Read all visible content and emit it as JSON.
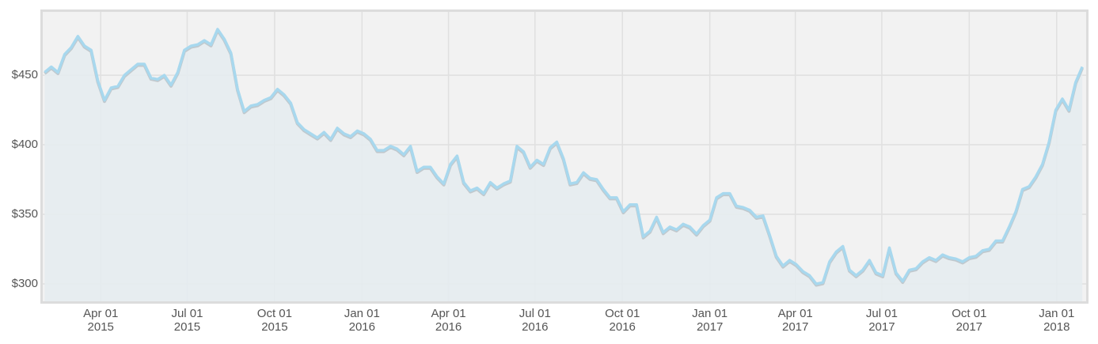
{
  "chart_data": {
    "type": "area",
    "x": [
      "2015-02-01",
      "2015-02-08",
      "2015-02-15",
      "2015-02-22",
      "2015-03-01",
      "2015-03-08",
      "2015-03-15",
      "2015-03-22",
      "2015-03-29",
      "2015-04-05",
      "2015-04-12",
      "2015-04-19",
      "2015-04-26",
      "2015-05-03",
      "2015-05-10",
      "2015-05-17",
      "2015-05-24",
      "2015-05-31",
      "2015-06-07",
      "2015-06-14",
      "2015-06-21",
      "2015-06-28",
      "2015-07-05",
      "2015-07-12",
      "2015-07-19",
      "2015-07-26",
      "2015-08-02",
      "2015-08-09",
      "2015-08-16",
      "2015-08-23",
      "2015-08-30",
      "2015-09-06",
      "2015-09-13",
      "2015-09-20",
      "2015-09-27",
      "2015-10-04",
      "2015-10-11",
      "2015-10-18",
      "2015-10-25",
      "2015-11-01",
      "2015-11-08",
      "2015-11-15",
      "2015-11-22",
      "2015-11-29",
      "2015-12-06",
      "2015-12-13",
      "2015-12-20",
      "2015-12-27",
      "2016-01-03",
      "2016-01-10",
      "2016-01-17",
      "2016-01-24",
      "2016-01-31",
      "2016-02-07",
      "2016-02-14",
      "2016-02-21",
      "2016-02-28",
      "2016-03-06",
      "2016-03-13",
      "2016-03-20",
      "2016-03-27",
      "2016-04-03",
      "2016-04-10",
      "2016-04-17",
      "2016-04-24",
      "2016-05-01",
      "2016-05-08",
      "2016-05-15",
      "2016-05-22",
      "2016-05-29",
      "2016-06-05",
      "2016-06-12",
      "2016-06-19",
      "2016-06-26",
      "2016-07-03",
      "2016-07-10",
      "2016-07-17",
      "2016-07-24",
      "2016-07-31",
      "2016-08-07",
      "2016-08-14",
      "2016-08-21",
      "2016-08-28",
      "2016-09-04",
      "2016-09-11",
      "2016-09-18",
      "2016-09-25",
      "2016-10-02",
      "2016-10-09",
      "2016-10-16",
      "2016-10-23",
      "2016-10-30",
      "2016-11-06",
      "2016-11-13",
      "2016-11-20",
      "2016-11-27",
      "2016-12-04",
      "2016-12-11",
      "2016-12-18",
      "2016-12-25",
      "2017-01-01",
      "2017-01-08",
      "2017-01-15",
      "2017-01-22",
      "2017-01-29",
      "2017-02-05",
      "2017-02-12",
      "2017-02-19",
      "2017-02-26",
      "2017-03-05",
      "2017-03-12",
      "2017-03-19",
      "2017-03-26",
      "2017-04-02",
      "2017-04-09",
      "2017-04-16",
      "2017-04-23",
      "2017-04-30",
      "2017-05-07",
      "2017-05-14",
      "2017-05-21",
      "2017-05-28",
      "2017-06-04",
      "2017-06-11",
      "2017-06-18",
      "2017-06-25",
      "2017-07-02",
      "2017-07-09",
      "2017-07-16",
      "2017-07-23",
      "2017-07-30",
      "2017-08-06",
      "2017-08-13",
      "2017-08-20",
      "2017-08-27",
      "2017-09-03",
      "2017-09-10",
      "2017-09-17",
      "2017-09-24",
      "2017-10-01",
      "2017-10-08",
      "2017-10-15",
      "2017-10-22",
      "2017-10-29",
      "2017-11-05",
      "2017-11-12",
      "2017-11-19",
      "2017-11-26",
      "2017-12-03",
      "2017-12-10",
      "2017-12-17",
      "2017-12-24",
      "2017-12-31",
      "2018-01-07",
      "2018-01-14",
      "2018-01-21",
      "2018-01-28"
    ],
    "values": [
      452,
      456,
      452,
      465,
      470,
      478,
      471,
      468,
      446,
      432,
      441,
      442,
      450,
      454,
      458,
      458,
      448,
      447,
      450,
      443,
      452,
      468,
      471,
      472,
      475,
      472,
      483,
      476,
      466,
      440,
      424,
      428,
      429,
      432,
      434,
      440,
      436,
      430,
      416,
      411,
      408,
      405,
      409,
      404,
      412,
      408,
      406,
      410,
      408,
      404,
      396,
      396,
      399,
      397,
      393,
      399,
      381,
      384,
      384,
      377,
      372,
      386,
      392,
      373,
      367,
      369,
      365,
      373,
      369,
      372,
      374,
      399,
      395,
      384,
      389,
      386,
      398,
      402,
      390,
      372,
      373,
      380,
      376,
      375,
      368,
      362,
      362,
      352,
      357,
      357,
      334,
      338,
      348,
      337,
      341,
      339,
      343,
      341,
      336,
      342,
      346,
      362,
      365,
      365,
      356,
      355,
      353,
      348,
      349,
      335,
      320,
      313,
      317,
      314,
      309,
      306,
      300,
      301,
      316,
      323,
      327,
      310,
      306,
      310,
      317,
      308,
      306,
      326,
      308,
      302,
      310,
      311,
      316,
      319,
      317,
      321,
      319,
      318,
      316,
      319,
      320,
      324,
      325,
      331,
      331,
      341,
      352,
      368,
      370,
      377,
      386,
      402,
      425,
      433,
      425,
      445,
      456
    ],
    "color": "#a8d8ee",
    "area_color": "#e5ecf0",
    "xlim": [
      "2015-01-30",
      "2018-02-01"
    ],
    "xticks": [
      {
        "value": "2015-04-01",
        "label": "Apr 01\n2015"
      },
      {
        "value": "2015-07-01",
        "label": "Jul 01\n2015"
      },
      {
        "value": "2015-10-01",
        "label": "Oct 01\n2015"
      },
      {
        "value": "2016-01-01",
        "label": "Jan 01\n2016"
      },
      {
        "value": "2016-04-01",
        "label": "Apr 01\n2016"
      },
      {
        "value": "2016-07-01",
        "label": "Jul 01\n2016"
      },
      {
        "value": "2016-10-01",
        "label": "Oct 01\n2016"
      },
      {
        "value": "2017-01-01",
        "label": "Jan 01\n2017"
      },
      {
        "value": "2017-04-01",
        "label": "Apr 01\n2017"
      },
      {
        "value": "2017-07-01",
        "label": "Jul 01\n2017"
      },
      {
        "value": "2017-10-01",
        "label": "Oct 01\n2017"
      },
      {
        "value": "2018-01-01",
        "label": "Jan 01\n2018"
      }
    ],
    "ylim": [
      287.5,
      495.5
    ],
    "yticks": [
      {
        "value": 300,
        "label": "$300"
      },
      {
        "value": 350,
        "label": "$350"
      },
      {
        "value": 400,
        "label": "$400"
      },
      {
        "value": 450,
        "label": "$450"
      }
    ],
    "grid": true
  }
}
